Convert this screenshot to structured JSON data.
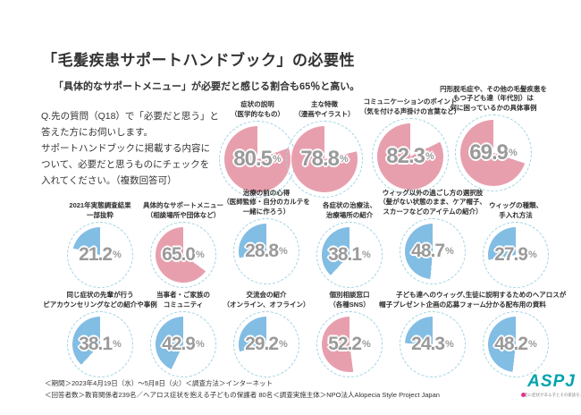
{
  "title": "「毛髪疾患サポートハンドブック」の必要性",
  "subtitle": "「具体的なサポートメニュー」が必要だと感じる割合も65％と高い。",
  "question": "Q.先の質問（Q18）で「必要だと思う」と\n答えた方にお伺いします。\nサポートハンドブックに掲載する内容に\nついて、必要だと思うものにチェックを\n入れてください。（複数回答可）",
  "colors": {
    "pink": "#e79fae",
    "blue": "#82bde4",
    "ring": "#9fd2e4",
    "percent_text": "#9a9a9a"
  },
  "chart_data": {
    "type": "pie",
    "unit": "%",
    "title": "「毛髪疾患サポートハンドブック」の必要性",
    "note": "複数回答可",
    "legend_position": "none",
    "items": [
      {
        "label": "症状の説明\n（医学的なもの）",
        "value": 80.5,
        "display": "80.5",
        "color": "pink"
      },
      {
        "label": "主な特徴\n（漫画やイラスト）",
        "value": 78.8,
        "display": "78.8",
        "color": "pink"
      },
      {
        "label": "コミュニケーションのポイント\n（気を付ける声掛けの言葉など）",
        "value": 82.3,
        "display": "82.3",
        "color": "pink"
      },
      {
        "label": "円形脱毛症や、その他の毛髪疾患を\nもつ子ども達（年代別）は\n何に困っているかの具体事例",
        "value": 69.9,
        "display": "69.9",
        "color": "pink"
      },
      {
        "label": "2021年実態調査結果\n一部抜粋",
        "value": 21.2,
        "display": "21.2",
        "color": "blue"
      },
      {
        "label": "具体的なサポートメニュー\n（相談場所や団体など）",
        "value": 65.0,
        "display": "65.0",
        "color": "pink"
      },
      {
        "label": "治療の前の心得\n（医師監修・自分のカルテを\n一緒に作ろう）",
        "value": 28.8,
        "display": "28.8",
        "color": "blue"
      },
      {
        "label": "各症状の治療法、\n治療場所の紹介",
        "value": 38.1,
        "display": "38.1",
        "color": "blue"
      },
      {
        "label": "ウィッグ以外の過ごし方の選択肢\n（髪がない状態のまま、ケア帽子、\nスカーフなどのアイテムの紹介）",
        "value": 48.7,
        "display": "48.7",
        "color": "blue"
      },
      {
        "label": "ウィッグの種類、\n手入れ方法",
        "value": 27.9,
        "display": "27.9",
        "color": "blue"
      },
      {
        "label": "同じ症状の先輩が行う\nピアカウンセリングなどの紹介や事例",
        "value": 38.1,
        "display": "38.1",
        "color": "blue"
      },
      {
        "label": "当事者・ご家族の\nコミュニティ",
        "value": 42.9,
        "display": "42.9",
        "color": "blue"
      },
      {
        "label": "交流会の紹介\n（オンライン、オフライン）",
        "value": 29.2,
        "display": "29.2",
        "color": "blue"
      },
      {
        "label": "個別相談窓口\n（各種SNS）",
        "value": 52.2,
        "display": "52.2",
        "color": "pink"
      },
      {
        "label": "子ども達へのウィッグ、\n帽子プレゼント企画の応募フォーム",
        "value": 24.3,
        "display": "24.3",
        "color": "blue"
      },
      {
        "label": "生徒に説明するためのヘアロスが\n分かる配布用の資料",
        "value": 48.2,
        "display": "48.2",
        "color": "blue"
      }
    ]
  },
  "footer": {
    "line1": "＜期間＞2023年4月19日（水）～5月8日（火）＜調査方法＞インターネット",
    "line2": "＜回答者数＞教育関係者239名／ヘアロス症状を抱える子どもの保護者 80名＜調査実施主体＞NPO法人Alopecia Style Project Japan"
  },
  "logo": {
    "text": "ASPJ",
    "tagline": "髪に症状がある子とその家族をハッピーにしたい団体"
  }
}
